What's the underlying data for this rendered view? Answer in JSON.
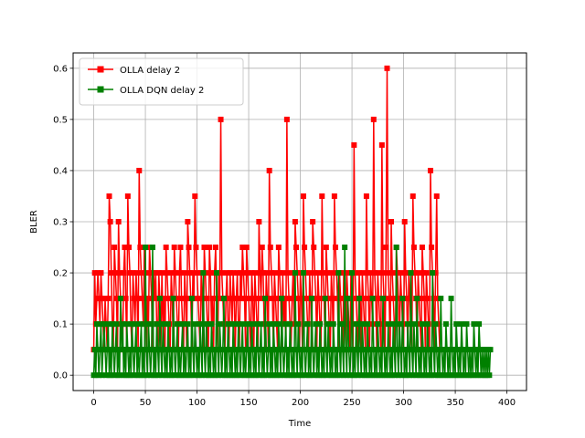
{
  "chart_data": {
    "type": "line",
    "title": "",
    "xlabel": "Time",
    "ylabel": "BLER",
    "xlim": [
      -19.95,
      418.95
    ],
    "ylim": [
      -0.03,
      0.63
    ],
    "xticks": [
      0,
      50,
      100,
      150,
      200,
      250,
      300,
      350,
      400
    ],
    "xtick_labels": [
      "0",
      "50",
      "100",
      "150",
      "200",
      "250",
      "300",
      "350",
      "400"
    ],
    "yticks": [
      0.0,
      0.1,
      0.2,
      0.3,
      0.4,
      0.5,
      0.6
    ],
    "ytick_labels": [
      "0.0",
      "0.1",
      "0.2",
      "0.3",
      "0.4",
      "0.5",
      "0.6"
    ],
    "grid": true,
    "legend_position": "top-left",
    "series": [
      {
        "name": "OLLA delay 2",
        "color": "#ff0000",
        "marker": "square",
        "x_start": 0,
        "x_step": 1,
        "y": [
          0.05,
          0.2,
          0.1,
          0.15,
          0.2,
          0.15,
          0.1,
          0.2,
          0.15,
          0.1,
          0.05,
          0.15,
          0.1,
          0.05,
          0.15,
          0.35,
          0.3,
          0.2,
          0.1,
          0.05,
          0.25,
          0.2,
          0.15,
          0.05,
          0.3,
          0.2,
          0.15,
          0.1,
          0.05,
          0.2,
          0.25,
          0.15,
          0.05,
          0.35,
          0.25,
          0.2,
          0.1,
          0.05,
          0.2,
          0.15,
          0.1,
          0.2,
          0.15,
          0.05,
          0.4,
          0.25,
          0.2,
          0.15,
          0.1,
          0.25,
          0.2,
          0.05,
          0.15,
          0.1,
          0.25,
          0.2,
          0.15,
          0.05,
          0.2,
          0.15,
          0.2,
          0.1,
          0.05,
          0.2,
          0.15,
          0.05,
          0.2,
          0.1,
          0.15,
          0.05,
          0.25,
          0.2,
          0.15,
          0.1,
          0.05,
          0.2,
          0.15,
          0.05,
          0.25,
          0.2,
          0.15,
          0.1,
          0.05,
          0.2,
          0.25,
          0.15,
          0.1,
          0.05,
          0.2,
          0.15,
          0.05,
          0.3,
          0.25,
          0.2,
          0.15,
          0.05,
          0.2,
          0.15,
          0.35,
          0.25,
          0.2,
          0.15,
          0.1,
          0.05,
          0.2,
          0.15,
          0.05,
          0.25,
          0.2,
          0.15,
          0.1,
          0.05,
          0.25,
          0.2,
          0.1,
          0.15,
          0.05,
          0.2,
          0.25,
          0.15,
          0.05,
          0.2,
          0.15,
          0.5,
          0.2,
          0.15,
          0.1,
          0.05,
          0.15,
          0.2,
          0.1,
          0.05,
          0.2,
          0.15,
          0.1,
          0.2,
          0.15,
          0.05,
          0.15,
          0.2,
          0.1,
          0.05,
          0.2,
          0.15,
          0.25,
          0.2,
          0.15,
          0.05,
          0.25,
          0.2,
          0.15,
          0.1,
          0.05,
          0.2,
          0.15,
          0.05,
          0.2,
          0.15,
          0.1,
          0.05,
          0.3,
          0.2,
          0.15,
          0.25,
          0.2,
          0.1,
          0.05,
          0.2,
          0.15,
          0.05,
          0.4,
          0.25,
          0.2,
          0.15,
          0.05,
          0.2,
          0.15,
          0.1,
          0.05,
          0.25,
          0.2,
          0.15,
          0.05,
          0.2,
          0.1,
          0.15,
          0.05,
          0.5,
          0.2,
          0.15,
          0.1,
          0.05,
          0.15,
          0.2,
          0.1,
          0.3,
          0.25,
          0.2,
          0.15,
          0.05,
          0.2,
          0.15,
          0.05,
          0.35,
          0.25,
          0.2,
          0.15,
          0.1,
          0.05,
          0.2,
          0.15,
          0.05,
          0.3,
          0.25,
          0.2,
          0.15,
          0.05,
          0.2,
          0.15,
          0.1,
          0.05,
          0.35,
          0.2,
          0.15,
          0.05,
          0.25,
          0.2,
          0.15,
          0.1,
          0.05,
          0.2,
          0.15,
          0.05,
          0.35,
          0.25,
          0.2,
          0.15,
          0.05,
          0.2,
          0.15,
          0.1,
          0.05,
          0.2,
          0.15,
          0.05,
          0.2,
          0.15,
          0.1,
          0.05,
          0.2,
          0.15,
          0.05,
          0.45,
          0.2,
          0.15,
          0.1,
          0.05,
          0.2,
          0.15,
          0.05,
          0.2,
          0.15,
          0.1,
          0.05,
          0.35,
          0.2,
          0.15,
          0.05,
          0.2,
          0.15,
          0.1,
          0.5,
          0.2,
          0.15,
          0.05,
          0.2,
          0.15,
          0.1,
          0.05,
          0.45,
          0.2,
          0.15,
          0.05,
          0.25,
          0.6,
          0.2,
          0.15,
          0.05,
          0.3,
          0.2,
          0.15,
          0.1,
          0.05,
          0.25,
          0.2,
          0.15,
          0.05,
          0.2,
          0.15,
          0.1,
          0.05,
          0.3,
          0.2,
          0.15,
          0.05,
          0.2,
          0.15,
          0.1,
          0.05,
          0.35,
          0.25,
          0.2,
          0.15,
          0.05,
          0.2,
          0.15,
          0.1,
          0.05,
          0.25,
          0.2,
          0.15,
          0.05,
          0.2,
          0.15,
          0.1,
          0.05,
          0.4,
          0.25,
          0.2,
          0.15,
          0.05,
          0.2,
          0.35,
          0.15,
          0.1,
          0.05
        ]
      },
      {
        "name": "OLLA DQN delay 2",
        "color": "#008000",
        "marker": "square",
        "x_start": 0,
        "x_step": 1,
        "y": [
          0.0,
          0.05,
          0.0,
          0.1,
          0.05,
          0.0,
          0.05,
          0.1,
          0.0,
          0.05,
          0.1,
          0.05,
          0.0,
          0.05,
          0.1,
          0.0,
          0.05,
          0.0,
          0.1,
          0.05,
          0.0,
          0.05,
          0.1,
          0.0,
          0.05,
          0.0,
          0.15,
          0.05,
          0.1,
          0.0,
          0.05,
          0.0,
          0.1,
          0.05,
          0.0,
          0.05,
          0.0,
          0.1,
          0.05,
          0.0,
          0.05,
          0.1,
          0.0,
          0.05,
          0.0,
          0.05,
          0.1,
          0.0,
          0.05,
          0.0,
          0.25,
          0.05,
          0.0,
          0.1,
          0.05,
          0.0,
          0.05,
          0.25,
          0.0,
          0.05,
          0.0,
          0.1,
          0.05,
          0.0,
          0.15,
          0.05,
          0.0,
          0.1,
          0.05,
          0.0,
          0.05,
          0.0,
          0.1,
          0.05,
          0.0,
          0.05,
          0.0,
          0.15,
          0.05,
          0.0,
          0.05,
          0.1,
          0.0,
          0.05,
          0.0,
          0.05,
          0.1,
          0.0,
          0.05,
          0.0,
          0.05,
          0.1,
          0.0,
          0.05,
          0.0,
          0.15,
          0.05,
          0.0,
          0.1,
          0.05,
          0.0,
          0.05,
          0.0,
          0.1,
          0.05,
          0.0,
          0.2,
          0.05,
          0.0,
          0.1,
          0.05,
          0.0,
          0.05,
          0.0,
          0.1,
          0.05,
          0.0,
          0.05,
          0.0,
          0.2,
          0.05,
          0.0,
          0.1,
          0.05,
          0.0,
          0.05,
          0.15,
          0.0,
          0.05,
          0.0,
          0.1,
          0.05,
          0.0,
          0.05,
          0.0,
          0.1,
          0.05,
          0.0,
          0.05,
          0.0,
          0.1,
          0.05,
          0.0,
          0.05,
          0.1,
          0.0,
          0.05,
          0.0,
          0.05,
          0.1,
          0.0,
          0.05,
          0.0,
          0.1,
          0.05,
          0.0,
          0.05,
          0.0,
          0.1,
          0.05,
          0.0,
          0.05,
          0.1,
          0.0,
          0.05,
          0.0,
          0.15,
          0.05,
          0.0,
          0.05,
          0.1,
          0.0,
          0.05,
          0.0,
          0.1,
          0.05,
          0.0,
          0.05,
          0.0,
          0.1,
          0.05,
          0.0,
          0.15,
          0.05,
          0.0,
          0.05,
          0.1,
          0.0,
          0.05,
          0.0,
          0.1,
          0.05,
          0.0,
          0.05,
          0.0,
          0.2,
          0.05,
          0.0,
          0.1,
          0.05,
          0.0,
          0.05,
          0.0,
          0.2,
          0.05,
          0.0,
          0.05,
          0.1,
          0.0,
          0.05,
          0.0,
          0.15,
          0.05,
          0.0,
          0.05,
          0.1,
          0.0,
          0.05,
          0.0,
          0.1,
          0.05,
          0.0,
          0.05,
          0.0,
          0.15,
          0.05,
          0.0,
          0.1,
          0.05,
          0.0,
          0.05,
          0.0,
          0.1,
          0.05,
          0.0,
          0.05,
          0.0,
          0.2,
          0.05,
          0.0,
          0.1,
          0.05,
          0.0,
          0.25,
          0.05,
          0.0,
          0.15,
          0.05,
          0.0,
          0.05,
          0.2,
          0.0,
          0.05,
          0.0,
          0.1,
          0.05,
          0.0,
          0.15,
          0.05,
          0.0,
          0.1,
          0.05,
          0.0,
          0.05,
          0.0,
          0.1,
          0.05,
          0.0,
          0.05,
          0.0,
          0.15,
          0.05,
          0.0,
          0.05,
          0.0,
          0.1,
          0.05,
          0.0,
          0.05,
          0.0,
          0.15,
          0.05,
          0.0,
          0.05,
          0.0,
          0.1,
          0.05,
          0.0,
          0.05,
          0.0,
          0.1,
          0.05,
          0.0,
          0.25,
          0.05,
          0.0,
          0.1,
          0.05,
          0.0,
          0.15,
          0.05,
          0.0,
          0.05,
          0.0,
          0.1,
          0.05,
          0.0,
          0.2,
          0.05,
          0.0,
          0.1,
          0.05,
          0.0,
          0.15,
          0.05,
          0.0,
          0.05,
          0.0,
          0.1,
          0.05,
          0.0,
          0.05,
          0.0,
          0.1,
          0.05,
          0.0,
          0.05,
          0.0,
          0.2,
          0.05,
          0.0,
          0.1,
          0.05,
          0.0,
          0.05,
          0.0,
          0.15,
          0.05,
          0.0,
          0.05,
          0.0,
          0.1,
          0.05,
          0.0,
          0.05,
          0.0,
          0.15,
          0.05,
          0.0,
          0.05,
          0.0,
          0.1,
          0.05,
          0.0,
          0.05,
          0.0,
          0.1,
          0.05,
          0.0,
          0.05,
          0.0,
          0.1,
          0.05,
          0.0,
          0.05,
          0.0,
          0.05,
          0.0,
          0.1,
          0.05,
          0.0,
          0.05,
          0.0,
          0.1,
          0.05,
          0.0,
          0.05,
          0.0,
          0.05,
          0.0,
          0.05,
          0.0,
          0.05,
          0.0,
          0.05
        ]
      }
    ]
  }
}
